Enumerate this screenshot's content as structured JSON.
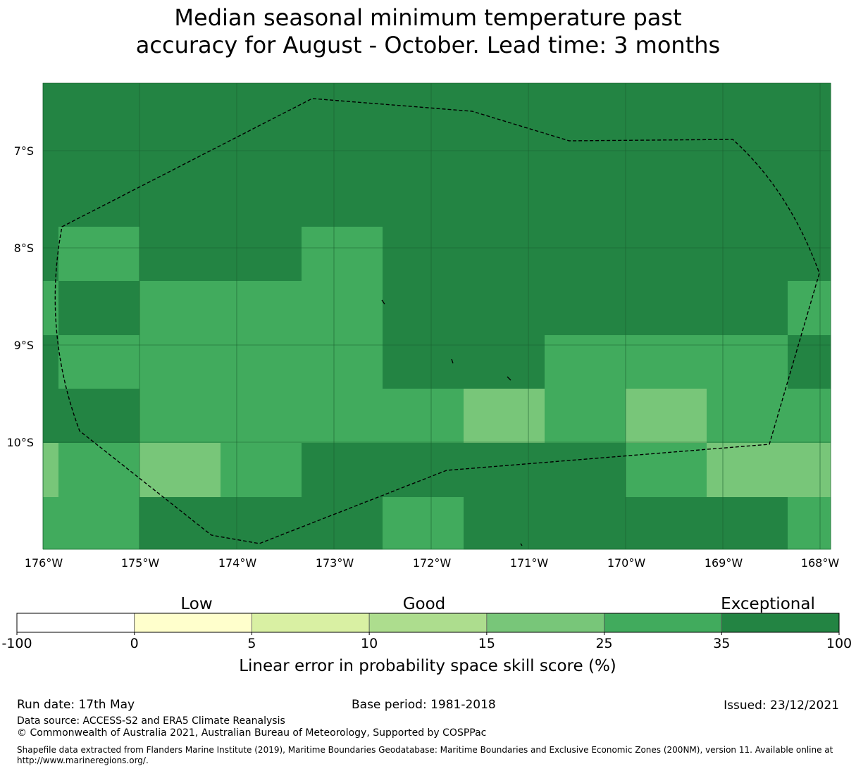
{
  "title_line1": "Median seasonal minimum temperature past",
  "title_line2": "accuracy for August - October. Lead time: 3 months",
  "colors": {
    "c1": "#ffffcc",
    "c2": "#d9f0a3",
    "c3": "#addd8e",
    "c4": "#78c679",
    "c5": "#41ab5d",
    "c6": "#238443",
    "boundary": "#000000"
  },
  "map": {
    "lat_labels": [
      "7°S",
      "8°S",
      "9°S",
      "10°S"
    ],
    "lon_labels": [
      "176°W",
      "175°W",
      "174°W",
      "173°W",
      "172°W",
      "171°W",
      "170°W",
      "169°W",
      "168°W"
    ],
    "grid": [
      [
        "c6",
        "c6",
        "c6",
        "c6",
        "c6",
        "c6",
        "c6",
        "c6",
        "c6",
        "c6",
        "c6"
      ],
      [
        "c6",
        "c6",
        "c6",
        "c6",
        "c6",
        "c6",
        "c6",
        "c6",
        "c6",
        "c6",
        "c6"
      ],
      [
        "c6",
        "c5",
        "c6",
        "c6",
        "c5",
        "c6",
        "c6",
        "c6",
        "c6",
        "c6",
        "c6"
      ],
      [
        "c5",
        "c6",
        "c5",
        "c5",
        "c5",
        "c6",
        "c6",
        "c6",
        "c6",
        "c6",
        "c5"
      ],
      [
        "c6",
        "c5",
        "c5",
        "c5",
        "c5",
        "c6",
        "c6",
        "c5",
        "c5",
        "c5",
        "c6"
      ],
      [
        "c6",
        "c6",
        "c5",
        "c5",
        "c5",
        "c5",
        "c4",
        "c5",
        "c4",
        "c5",
        "c5"
      ],
      [
        "c4",
        "c5",
        "c4",
        "c5",
        "c6",
        "c6",
        "c6",
        "c6",
        "c5",
        "c4",
        "c4"
      ],
      [
        "c5",
        "c5",
        "c6",
        "c6",
        "c6",
        "c5",
        "c6",
        "c6",
        "c6",
        "c6",
        "c5"
      ]
    ]
  },
  "legend": {
    "category_labels": [
      "Low",
      "Good",
      "Exceptional"
    ],
    "colors": [
      "#ffffff",
      "#ffffcc",
      "#d9f0a3",
      "#addd8e",
      "#78c679",
      "#41ab5d",
      "#238443"
    ],
    "ticks": [
      "-100",
      "0",
      "5",
      "10",
      "15",
      "25",
      "35",
      "100"
    ],
    "label": "Linear error in probability space skill score (%)"
  },
  "footer": {
    "run_date": "Run date: 17th May",
    "base_period": "Base period: 1981-2018",
    "issued": "Issued: 23/12/2021",
    "data_source": "Data source: ACCESS-S2 and ERA5 Climate Reanalysis",
    "copyright": "© Commonwealth of Australia 2021, Australian Bureau of Meteorology, Supported by COSPPac",
    "shapefile": "Shapefile data extracted from Flanders Marine Institute (2019), Maritime Boundaries Geodatabase: Maritime Boundaries and Exclusive Economic Zones (200NM), version 11. Available online at http://www.marineregions.org/."
  }
}
